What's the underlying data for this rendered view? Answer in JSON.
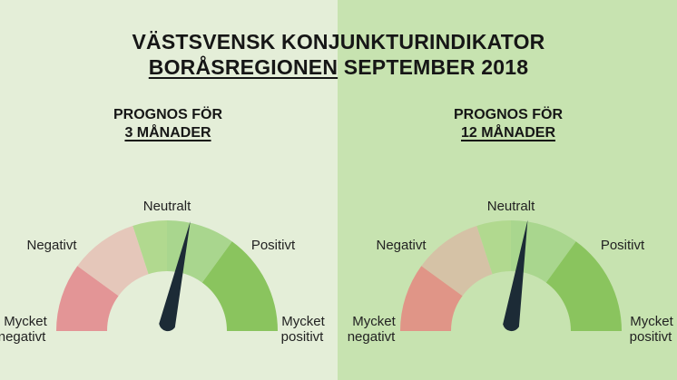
{
  "header": {
    "title_line1": "VÄSTSVENSK KONJUNKTURINDIKATOR",
    "title_region": "BORÅSREGIONEN",
    "title_rest": " SEPTEMBER 2018"
  },
  "colors": {
    "mycket_negativt": "#e39596",
    "negativt": "#e5c7ba",
    "neutralt": "#b1d98f",
    "positivt": "#a9d68e",
    "mycket_positivt": "#8ac45e",
    "needle": "#1c2b36"
  },
  "chart_data": [
    {
      "type": "gauge",
      "heading_line1": "PROGNOS FÖR",
      "heading_line2": "3 MÅNADER",
      "segments": [
        "Mycket negativt",
        "Negativt",
        "Neutralt",
        "Positivt",
        "Mycket positivt"
      ],
      "labels": {
        "mycket_negativt_1": "Mycket",
        "mycket_negativt_2": "negativt",
        "negativt": "Negativt",
        "neutralt": "Neutralt",
        "positivt": "Positivt",
        "mycket_positivt_1": "Mycket",
        "mycket_positivt_2": "positivt"
      },
      "value": 0.57
    },
    {
      "type": "gauge",
      "heading_line1": "PROGNOS FÖR",
      "heading_line2": "12 MÅNADER",
      "segments": [
        "Mycket negativt",
        "Negativt",
        "Neutralt",
        "Positivt",
        "Mycket positivt"
      ],
      "labels": {
        "mycket_negativt_1": "Mycket",
        "mycket_negativt_2": "negativt",
        "negativt": "Negativt",
        "neutralt": "Neutralt",
        "positivt": "Positivt",
        "mycket_positivt_1": "Mycket",
        "mycket_positivt_2": "positivt"
      },
      "value": 0.55
    }
  ]
}
